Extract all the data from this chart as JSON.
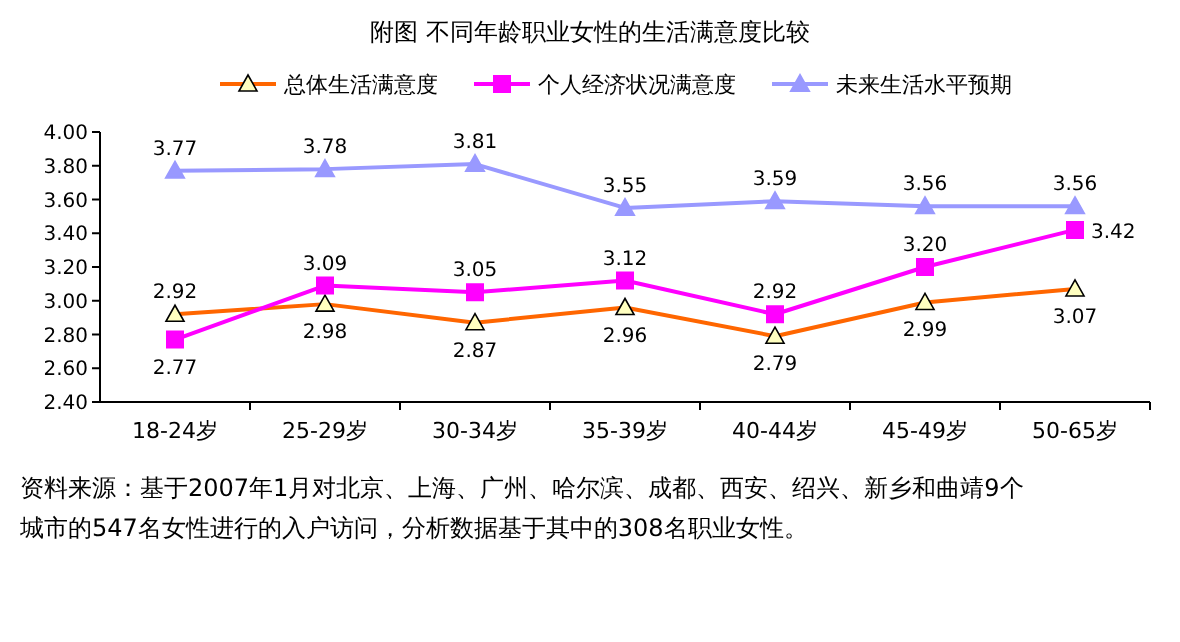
{
  "chart_data": {
    "type": "line",
    "title": "附图    不同年龄职业女性的生活满意度比较",
    "categories": [
      "18-24岁",
      "25-29岁",
      "30-34岁",
      "35-39岁",
      "40-44岁",
      "45-49岁",
      "50-65岁"
    ],
    "series": [
      {
        "name": "总体生活满意度",
        "color": "#ff6600",
        "marker": "triangle",
        "values": [
          2.92,
          2.98,
          2.87,
          2.96,
          2.79,
          2.99,
          3.07
        ],
        "value_labels": [
          "2.92",
          "2.98",
          "2.87",
          "2.96",
          "2.79",
          "2.99",
          "3.07"
        ]
      },
      {
        "name": "个人经济状况满意度",
        "color": "#ff00ff",
        "marker": "square",
        "values": [
          2.77,
          3.09,
          3.05,
          3.12,
          2.92,
          3.2,
          3.42
        ],
        "value_labels": [
          "2.77",
          "3.09",
          "3.05",
          "3.12",
          "2.92",
          "3.20",
          "3.42"
        ]
      },
      {
        "name": "未来生活水平预期",
        "color": "#9999ff",
        "marker": "triangle",
        "values": [
          3.77,
          3.78,
          3.81,
          3.55,
          3.59,
          3.56,
          3.56
        ],
        "value_labels": [
          "3.77",
          "3.78",
          "3.81",
          "3.55",
          "3.59",
          "3.56",
          "3.56"
        ]
      }
    ],
    "ylim": [
      2.4,
      4.0
    ],
    "yticks": [
      {
        "value": 2.4,
        "label": "2.40"
      },
      {
        "value": 2.6,
        "label": "2.60"
      },
      {
        "value": 2.8,
        "label": "2.80"
      },
      {
        "value": 3.0,
        "label": "3.00"
      },
      {
        "value": 3.2,
        "label": "3.20"
      },
      {
        "value": 3.4,
        "label": "3.40"
      },
      {
        "value": 3.6,
        "label": "3.60"
      },
      {
        "value": 3.8,
        "label": "3.80"
      },
      {
        "value": 4.0,
        "label": "4.00"
      }
    ],
    "legend": "top",
    "grid": false,
    "annotations": [
      "资料来源：基于2007年1月对北京、上海、广州、哈尔滨、成都、西安、绍兴、新乡和曲靖9个城市的547名女性进行的入户访问，分析数据基于其中的308名职业女性。"
    ]
  }
}
